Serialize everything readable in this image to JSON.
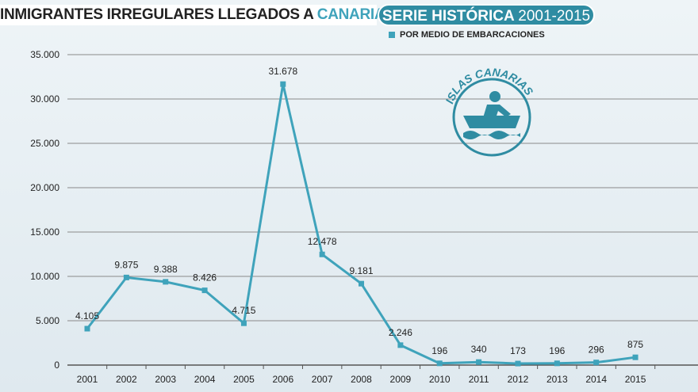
{
  "header": {
    "title_prefix": "INMIGRANTES IRREGULARES LLEGADOS A ",
    "title_highlight": "CANARIAS",
    "badge_text": "SERIE HISTÓRICA",
    "badge_years": "2001-2015"
  },
  "logo": {
    "text": "ISLAS CANARIAS",
    "icon": "rowing-boat-icon"
  },
  "colors": {
    "line": "#3fa3bb",
    "badge": "#2f8ca2",
    "grid": "#8a8a8a"
  },
  "chart_data": {
    "type": "line",
    "categories": [
      "2001",
      "2002",
      "2003",
      "2004",
      "2005",
      "2006",
      "2007",
      "2008",
      "2009",
      "2010",
      "2011",
      "2012",
      "2013",
      "2014",
      "2015"
    ],
    "series": [
      {
        "name": "POR MEDIO DE EMBARCACIONES",
        "values": [
          4105,
          9875,
          9388,
          8426,
          4715,
          31678,
          12478,
          9181,
          2246,
          196,
          340,
          173,
          196,
          296,
          875
        ]
      }
    ],
    "data_labels": [
      "4.105",
      "9.875",
      "9.388",
      "8.426",
      "4.715",
      "31.678",
      "12.478",
      "9.181",
      "2.246",
      "196",
      "340",
      "173",
      "196",
      "296",
      "875"
    ],
    "ylim": [
      0,
      35000
    ],
    "yticks": [
      "0",
      "5.000",
      "10.000",
      "15.000",
      "20.000",
      "25.000",
      "30.000",
      "35.000"
    ],
    "grid": true,
    "legend": "top-right"
  }
}
